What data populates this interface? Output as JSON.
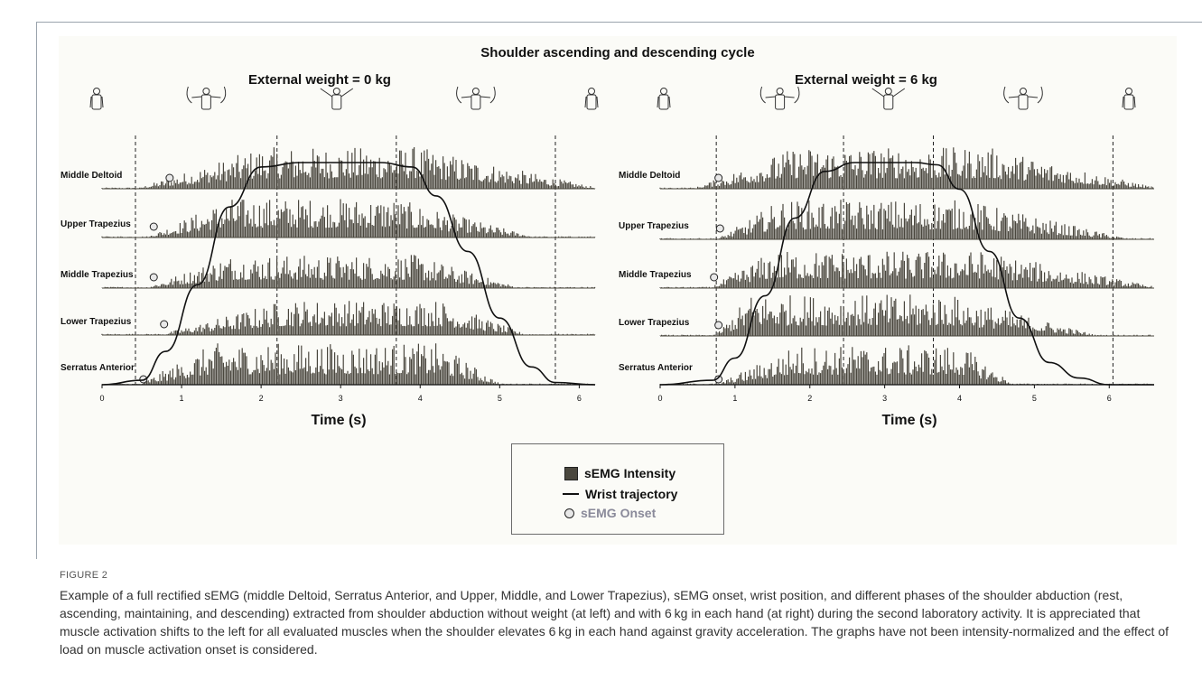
{
  "figure": {
    "label": "FIGURE 2",
    "caption": "Example of a full rectified sEMG (middle Deltoid, Serratus Anterior, and Upper, Middle, and Lower Trapezius), sEMG onset, wrist position, and different phases of the shoulder abduction (rest, ascending, maintaining, and descending) extracted from shoulder abduction without weight (at left) and with 6 kg in each hand (at right) during the second laboratory activity. It is appreciated that muscle activation shifts to the left for all evaluated muscles when the shoulder elevates 6 kg in each hand against gravity acceleration. The graphs have not been intensity-normalized and the effect of load on muscle activation onset is considered."
  },
  "legend": {
    "intensity": "sEMG Intensity",
    "trajectory": "Wrist trajectory",
    "onset": "sEMG Onset"
  },
  "colors": {
    "emg_fill": "#4a473e",
    "trajectory": "#111111",
    "onset_fill": "#e8e8e8",
    "onset_label": "#8a8a9a"
  },
  "chart_data": {
    "title": "Shoulder ascending and descending cycle",
    "panels": [
      {
        "subtitle": "External weight = 0 kg",
        "type": "area",
        "xlabel": "Time (s)",
        "xlim": [
          0,
          6.2
        ],
        "x_ticks": [
          "0",
          "1",
          "2",
          "3",
          "4",
          "5",
          "6"
        ],
        "phase_boundaries": [
          0.42,
          2.2,
          3.7,
          5.7
        ],
        "phase_icons": [
          "rest-figure-icon",
          "ascending-figure-icon",
          "maintaining-figure-icon",
          "descending-figure-icon",
          "rest-figure-icon"
        ],
        "muscles": [
          {
            "name": "Middle Deltoid",
            "onset_s": 0.85,
            "activity": {
              "start": 0.5,
              "peak_start": 2.0,
              "peak_end": 3.9,
              "end": 6.2,
              "peak": 1.0
            }
          },
          {
            "name": "Upper Trapezius",
            "onset_s": 0.65,
            "activity": {
              "start": 0.6,
              "peak_start": 1.6,
              "peak_end": 3.6,
              "end": 5.4,
              "peak": 0.95
            }
          },
          {
            "name": "Middle Trapezius",
            "onset_s": 0.65,
            "activity": {
              "start": 0.6,
              "peak_start": 1.6,
              "peak_end": 3.9,
              "end": 5.2,
              "peak": 0.8
            }
          },
          {
            "name": "Lower Trapezius",
            "onset_s": 0.78,
            "activity": {
              "start": 0.8,
              "peak_start": 2.3,
              "peak_end": 4.2,
              "end": 5.3,
              "peak": 0.85
            }
          },
          {
            "name": "Serratus Anterior",
            "onset_s": 0.52,
            "activity": {
              "start": 0.5,
              "peak_start": 1.4,
              "peak_end": 4.2,
              "end": 5.0,
              "peak": 1.0
            }
          }
        ],
        "wrist_trajectory": {
          "x": [
            0,
            0.5,
            0.8,
            1.2,
            1.6,
            2.0,
            2.5,
            3.0,
            3.5,
            3.9,
            4.2,
            4.6,
            5.0,
            5.4,
            5.7,
            6.2
          ],
          "y": [
            0,
            0.02,
            0.15,
            0.45,
            0.8,
            0.98,
            1.0,
            1.0,
            1.0,
            0.98,
            0.85,
            0.6,
            0.3,
            0.08,
            0.01,
            0
          ]
        }
      },
      {
        "subtitle": "External weight = 6 kg",
        "type": "area",
        "xlabel": "Time (s)",
        "xlim": [
          0,
          6.6
        ],
        "x_ticks": [
          "0",
          "1",
          "2",
          "3",
          "4",
          "5",
          "6"
        ],
        "phase_boundaries": [
          0.75,
          2.45,
          3.65,
          6.05
        ],
        "phase_icons": [
          "rest-figure-icon",
          "ascending-figure-icon",
          "maintaining-figure-icon",
          "descending-figure-icon",
          "rest-figure-icon"
        ],
        "muscles": [
          {
            "name": "Middle Deltoid",
            "onset_s": 0.78,
            "activity": {
              "start": 0.5,
              "peak_start": 1.8,
              "peak_end": 4.3,
              "end": 6.6,
              "peak": 1.0
            }
          },
          {
            "name": "Upper Trapezius",
            "onset_s": 0.8,
            "activity": {
              "start": 0.8,
              "peak_start": 1.6,
              "peak_end": 4.0,
              "end": 6.2,
              "peak": 0.95
            }
          },
          {
            "name": "Middle Trapezius",
            "onset_s": 0.72,
            "activity": {
              "start": 0.7,
              "peak_start": 1.5,
              "peak_end": 4.2,
              "end": 6.6,
              "peak": 0.9
            }
          },
          {
            "name": "Lower Trapezius",
            "onset_s": 0.78,
            "activity": {
              "start": 0.75,
              "peak_start": 1.2,
              "peak_end": 3.8,
              "end": 5.8,
              "peak": 1.0
            }
          },
          {
            "name": "Serratus Anterior",
            "onset_s": 0.78,
            "activity": {
              "start": 0.8,
              "peak_start": 1.8,
              "peak_end": 4.0,
              "end": 4.7,
              "peak": 0.95
            }
          }
        ],
        "wrist_trajectory": {
          "x": [
            0,
            0.7,
            1.0,
            1.4,
            1.8,
            2.2,
            2.6,
            3.0,
            3.4,
            3.7,
            4.0,
            4.4,
            4.8,
            5.2,
            5.6,
            6.0,
            6.6
          ],
          "y": [
            0,
            0.02,
            0.12,
            0.4,
            0.75,
            0.96,
            1.0,
            1.0,
            1.0,
            0.99,
            0.88,
            0.6,
            0.3,
            0.1,
            0.03,
            0.0,
            0
          ]
        }
      }
    ]
  }
}
